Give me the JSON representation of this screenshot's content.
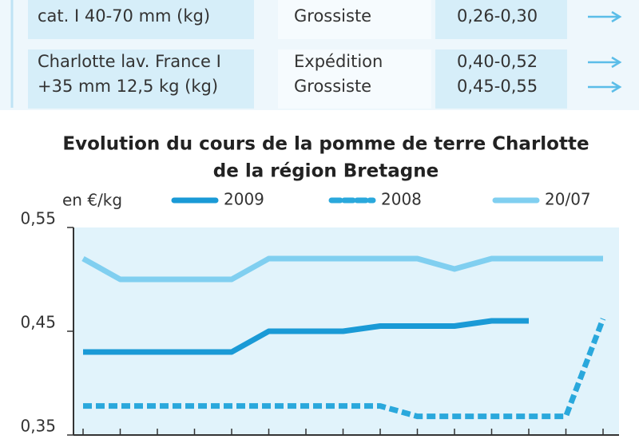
{
  "table": {
    "rows": [
      {
        "product": [
          "cat. I 40-70 mm (kg)"
        ],
        "market": [
          "Grossiste"
        ],
        "price": [
          "0,26-0,30"
        ]
      },
      {
        "product": [
          "Charlotte lav. France I",
          "+35 mm 12,5 kg (kg)"
        ],
        "market": [
          "Expédition",
          "Grossiste"
        ],
        "price": [
          "0,40-0,52",
          "0,45-0,55"
        ]
      }
    ]
  },
  "chart_data": {
    "type": "line",
    "title": [
      "Evolution du cours de la pomme de terre Charlotte",
      "de la région Bretagne"
    ],
    "y_label": "en €/kg",
    "categories": [
      null,
      null,
      null,
      null,
      null,
      null,
      null,
      null,
      null,
      null,
      null,
      null,
      null,
      null,
      null
    ],
    "series": [
      {
        "name": "2009",
        "color": "#1a9ad6",
        "style": "solid",
        "values": [
          0.43,
          0.43,
          0.43,
          0.43,
          0.43,
          0.45,
          0.45,
          0.45,
          0.455,
          0.455,
          0.455,
          0.46,
          0.46,
          null,
          null
        ]
      },
      {
        "name": "2008",
        "color": "#2aa8dc",
        "style": "dashed",
        "values": [
          0.378,
          0.378,
          0.378,
          0.378,
          0.378,
          0.378,
          0.378,
          0.378,
          0.378,
          0.368,
          0.368,
          0.368,
          0.368,
          0.368,
          0.462
        ]
      },
      {
        "name": "20/07",
        "color": "#80cff0",
        "style": "solid",
        "values": [
          0.52,
          0.5,
          0.5,
          0.5,
          0.5,
          0.52,
          0.52,
          0.52,
          0.52,
          0.52,
          0.51,
          0.52,
          0.52,
          0.52,
          0.52
        ]
      }
    ],
    "ylim": [
      0.35,
      0.55
    ],
    "yticks": [
      {
        "value": 0.35,
        "label": "0,35"
      },
      {
        "value": 0.45,
        "label": "0,45"
      },
      {
        "value": 0.55,
        "label": "0,55"
      }
    ],
    "grid": false
  }
}
